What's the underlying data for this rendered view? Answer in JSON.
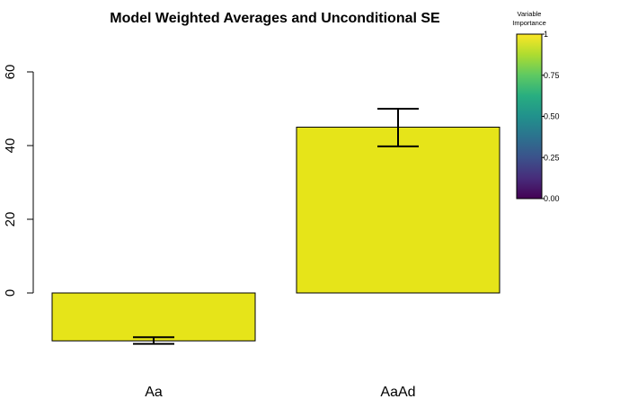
{
  "chart_data": {
    "type": "bar",
    "title": "Model Weighted Averages and Unconditional SE",
    "categories": [
      "Aa",
      "AaAd"
    ],
    "values": [
      -13.0,
      45.0
    ],
    "error_upper": [
      -12.0,
      50.0
    ],
    "error_lower": [
      -13.8,
      39.8
    ],
    "importance": [
      1,
      1
    ],
    "ylim": [
      -18,
      68
    ],
    "yticks": [
      "0",
      "20",
      "40",
      "60"
    ],
    "ytick_values": [
      0,
      20,
      40,
      60
    ],
    "bar_color": "#e6e419",
    "grid": false,
    "legend": {
      "title_line1": "Variable",
      "title_line2": "Importance",
      "placement": "top-right",
      "colormap": "viridis",
      "ticks": [
        "0.00",
        "0.25",
        "0.50",
        "0.75",
        "1"
      ],
      "tick_values": [
        0,
        0.25,
        0.5,
        0.75,
        1
      ]
    }
  }
}
